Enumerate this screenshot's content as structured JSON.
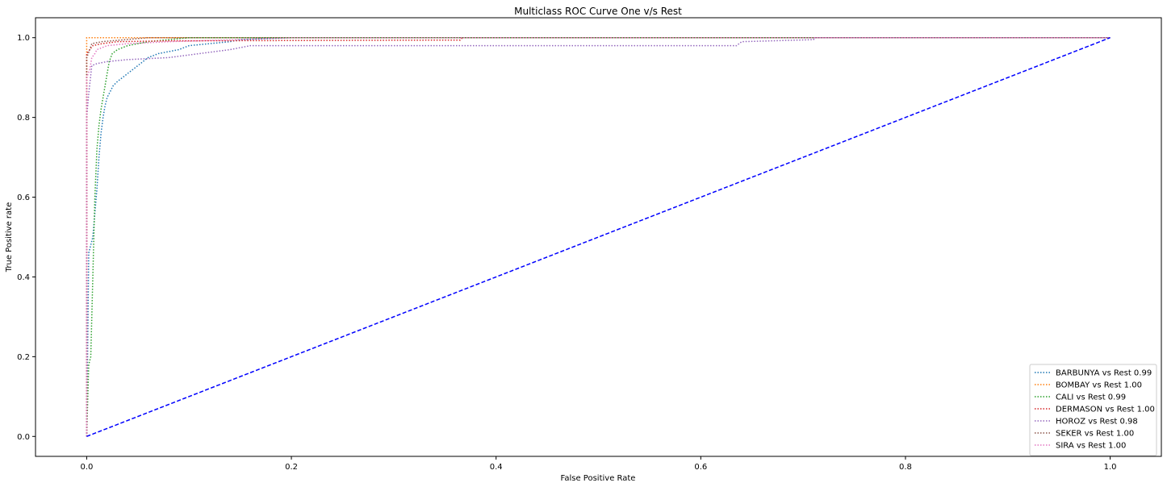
{
  "chart_data": {
    "type": "line",
    "title": "Multiclass ROC Curve One v/s Rest",
    "xlabel": "False Positive Rate",
    "ylabel": "True Positive rate",
    "xlim": [
      -0.05,
      1.05
    ],
    "ylim": [
      -0.05,
      1.05
    ],
    "xticks": [
      "0.0",
      "0.2",
      "0.4",
      "0.6",
      "0.8",
      "1.0"
    ],
    "yticks": [
      "0.0",
      "0.2",
      "0.4",
      "0.6",
      "0.8",
      "1.0"
    ],
    "grid": false,
    "legend_position": "lower-right",
    "series": [
      {
        "name": "BARBUNYA vs Rest 0.99",
        "color": "#1f77b4",
        "style": "dotted",
        "x": [
          0.0,
          0.002,
          0.004,
          0.006,
          0.008,
          0.01,
          0.012,
          0.014,
          0.016,
          0.018,
          0.02,
          0.022,
          0.024,
          0.026,
          0.03,
          0.035,
          0.04,
          0.045,
          0.05,
          0.055,
          0.06,
          0.07,
          0.08,
          0.09,
          0.1,
          0.12,
          0.14,
          0.15,
          0.2,
          1.0
        ],
        "y": [
          0.0,
          0.46,
          0.48,
          0.5,
          0.56,
          0.62,
          0.7,
          0.76,
          0.8,
          0.83,
          0.85,
          0.86,
          0.87,
          0.88,
          0.89,
          0.9,
          0.91,
          0.92,
          0.93,
          0.94,
          0.95,
          0.96,
          0.965,
          0.97,
          0.98,
          0.985,
          0.99,
          0.995,
          1.0,
          1.0
        ]
      },
      {
        "name": "BOMBAY vs Rest 1.00",
        "color": "#ff7f0e",
        "style": "dotted",
        "x": [
          0.0,
          0.0,
          1.0
        ],
        "y": [
          0.0,
          1.0,
          1.0
        ]
      },
      {
        "name": "CALI vs Rest 0.99",
        "color": "#2ca02c",
        "style": "dotted",
        "x": [
          0.0,
          0.002,
          0.004,
          0.006,
          0.008,
          0.01,
          0.012,
          0.014,
          0.016,
          0.018,
          0.02,
          0.022,
          0.025,
          0.03,
          0.035,
          0.04,
          0.05,
          0.06,
          0.08,
          0.1,
          1.0
        ],
        "y": [
          0.0,
          0.18,
          0.2,
          0.4,
          0.6,
          0.72,
          0.78,
          0.82,
          0.85,
          0.88,
          0.91,
          0.94,
          0.96,
          0.97,
          0.975,
          0.98,
          0.985,
          0.99,
          0.995,
          1.0,
          1.0
        ]
      },
      {
        "name": "DERMASON vs Rest 1.00",
        "color": "#d62728",
        "style": "dotted",
        "x": [
          0.0,
          0.0,
          0.003,
          0.006,
          0.015,
          0.03,
          0.08,
          0.365,
          0.367,
          1.0
        ],
        "y": [
          0.0,
          0.96,
          0.97,
          0.98,
          0.985,
          0.99,
          0.992,
          0.994,
          1.0,
          1.0
        ]
      },
      {
        "name": "HOROZ vs Rest 0.98",
        "color": "#9467bd",
        "style": "dotted",
        "x": [
          0.0,
          0.0,
          0.002,
          0.005,
          0.01,
          0.02,
          0.04,
          0.08,
          0.14,
          0.16,
          0.635,
          0.64,
          0.71,
          0.712,
          1.0
        ],
        "y": [
          0.0,
          0.8,
          0.86,
          0.93,
          0.935,
          0.94,
          0.945,
          0.95,
          0.97,
          0.98,
          0.98,
          0.99,
          0.995,
          1.0,
          1.0
        ]
      },
      {
        "name": "SEKER vs Rest 1.00",
        "color": "#8c564b",
        "style": "dotted",
        "x": [
          0.0,
          0.0,
          0.003,
          0.005,
          0.015,
          0.06,
          1.0
        ],
        "y": [
          0.0,
          0.95,
          0.97,
          0.985,
          0.99,
          1.0,
          1.0
        ]
      },
      {
        "name": "SIRA vs Rest 1.00",
        "color": "#e377c2",
        "style": "dotted",
        "x": [
          0.0,
          0.0,
          0.003,
          0.005,
          0.008,
          0.01,
          0.02,
          0.04,
          0.08,
          0.15,
          0.2,
          1.0
        ],
        "y": [
          0.0,
          0.9,
          0.92,
          0.95,
          0.96,
          0.97,
          0.98,
          0.985,
          0.99,
          0.995,
          1.0,
          1.0
        ]
      },
      {
        "name": "",
        "color": "#0000ff",
        "style": "dashed",
        "x": [
          0.0,
          1.0
        ],
        "y": [
          0.0,
          1.0
        ]
      }
    ]
  }
}
